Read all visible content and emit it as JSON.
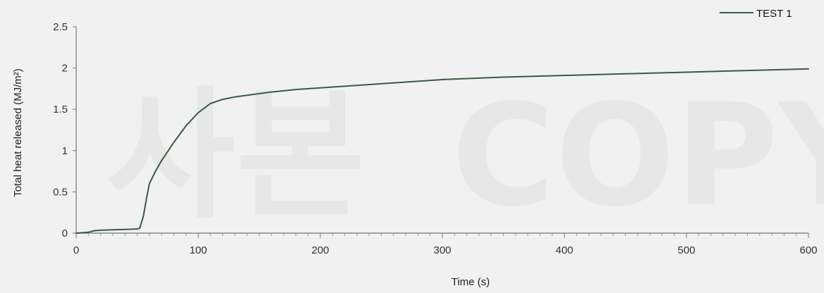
{
  "watermark": {
    "hangul": "사본",
    "latin": "COPY"
  },
  "chart_data": {
    "type": "line",
    "title": "",
    "xlabel": "Time (s)",
    "ylabel": "Total heat released (MJ/m²)",
    "xlim": [
      0,
      600
    ],
    "ylim": [
      0,
      2.5
    ],
    "xticks": [
      0,
      100,
      200,
      300,
      400,
      500,
      600
    ],
    "yticks": [
      0,
      0.5,
      1,
      1.5,
      2,
      2.5
    ],
    "ytick_labels": [
      "0",
      "0.5",
      "1",
      "1.5",
      "2",
      "2.5"
    ],
    "grid": false,
    "legend_position": "top-right",
    "series": [
      {
        "name": "TEST 1",
        "color": "#3a5a40",
        "x": [
          0,
          10,
          15,
          20,
          30,
          40,
          50,
          52,
          55,
          58,
          60,
          65,
          70,
          80,
          90,
          100,
          110,
          120,
          130,
          140,
          160,
          180,
          200,
          250,
          300,
          350,
          400,
          450,
          500,
          550,
          600
        ],
        "y": [
          0,
          0.01,
          0.03,
          0.035,
          0.04,
          0.045,
          0.05,
          0.06,
          0.2,
          0.45,
          0.6,
          0.75,
          0.88,
          1.1,
          1.3,
          1.46,
          1.57,
          1.62,
          1.65,
          1.67,
          1.71,
          1.74,
          1.76,
          1.81,
          1.86,
          1.89,
          1.91,
          1.93,
          1.95,
          1.97,
          1.99
        ]
      }
    ]
  }
}
